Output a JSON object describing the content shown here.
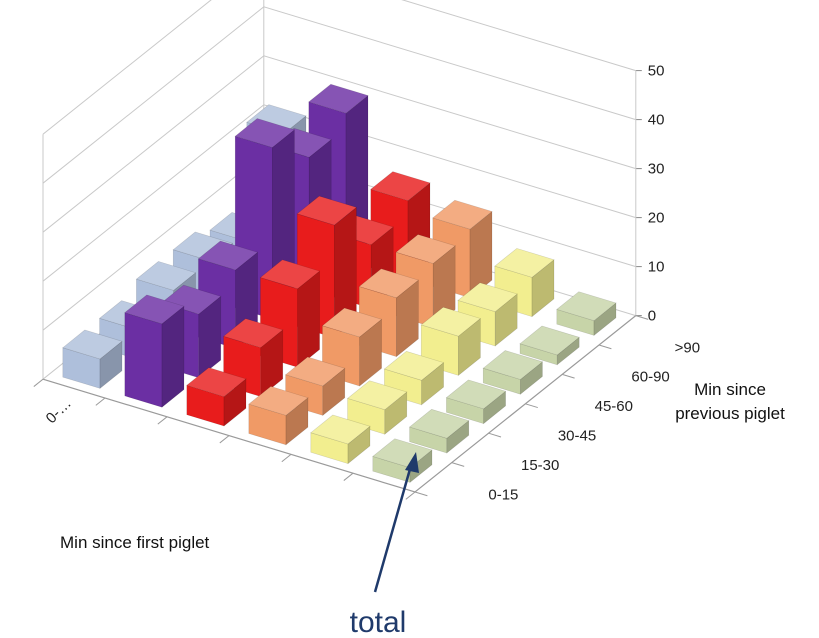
{
  "chart_data": {
    "type": "bar3d",
    "title": "",
    "xlabel": "Min since first piglet",
    "ylabel": "Min since previous piglet",
    "zlim": [
      0,
      50
    ],
    "z_ticks": [
      "0",
      "10",
      "20",
      "30",
      "40",
      "50"
    ],
    "x_categories": [
      "0-…",
      "",
      "",
      "",
      "",
      ""
    ],
    "y_categories": [
      "0-15",
      "15-30",
      "30-45",
      "45-60",
      "60-90",
      ">90"
    ],
    "grid": true,
    "series_colors": [
      "#c7d4a8",
      "#f2ee8f",
      "#f09a66",
      "#e81c1c",
      "#6b2fa3",
      "#aebfdb"
    ],
    "values": [
      [
        3,
        3,
        3,
        3,
        2,
        3
      ],
      [
        4,
        5,
        5,
        8,
        7,
        8
      ],
      [
        6,
        6,
        10,
        12,
        13,
        14
      ],
      [
        6,
        10,
        16,
        23,
        13,
        16
      ],
      [
        17,
        13,
        16,
        35,
        27,
        30
      ],
      [
        6,
        6,
        8,
        8,
        6,
        22
      ]
    ],
    "annotation": "total"
  }
}
